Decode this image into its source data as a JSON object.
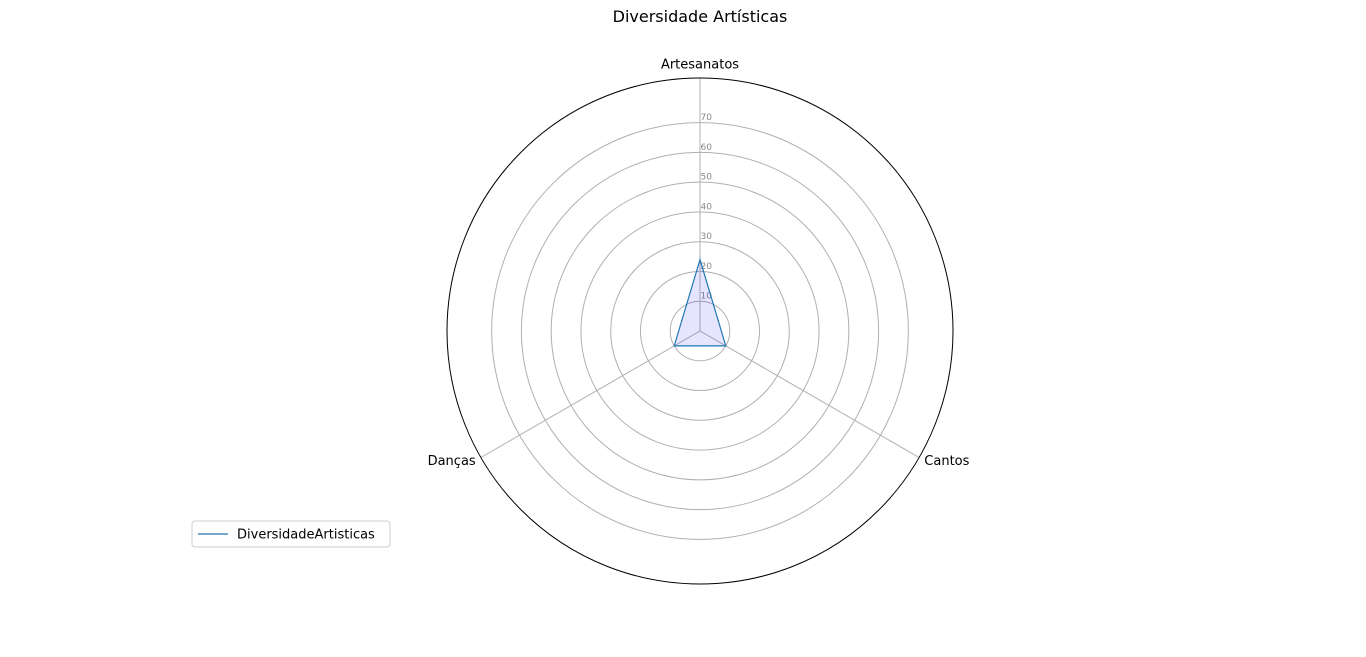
{
  "chart_data": {
    "type": "radar",
    "title": "Diversidade Artísticas",
    "categories": [
      "Artesanatos",
      "Cantos",
      "Danças"
    ],
    "series": [
      {
        "name": "DiversidadeArtisticas",
        "values": [
          24,
          10,
          10
        ],
        "color": "#1f77b4",
        "fill": "#0000ff"
      }
    ],
    "r_ticks": [
      10,
      20,
      30,
      40,
      50,
      60,
      70
    ],
    "rlim": [
      0,
      85
    ],
    "grid": true,
    "legend_position": "lower-left"
  }
}
